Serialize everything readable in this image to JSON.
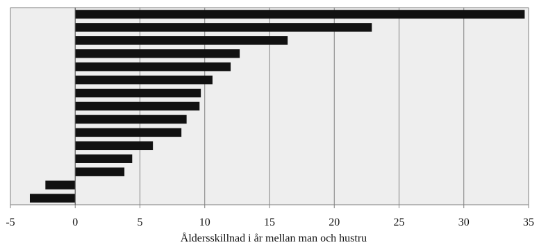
{
  "chart_data": {
    "type": "bar",
    "orientation": "horizontal",
    "title": "",
    "xlabel": "Åldersskillnad i år mellan man och hustru",
    "ylabel": "",
    "xlim": [
      -5,
      35
    ],
    "xticks": [
      -5,
      0,
      5,
      10,
      15,
      20,
      25,
      30,
      35
    ],
    "xtick_labels": [
      "-5",
      "0",
      "5",
      "10",
      "15",
      "20",
      "25",
      "30",
      "35"
    ],
    "values": [
      34.7,
      22.9,
      16.4,
      12.7,
      12.0,
      10.6,
      9.7,
      9.6,
      8.6,
      8.2,
      6.0,
      4.4,
      3.8,
      -2.3,
      -3.5
    ],
    "grid": true,
    "legend": "none",
    "colors": {
      "bar": "#111111",
      "plot_background": "#eeeeee",
      "grid": "#7f7f7f",
      "frame": "#7f7f7f"
    }
  }
}
